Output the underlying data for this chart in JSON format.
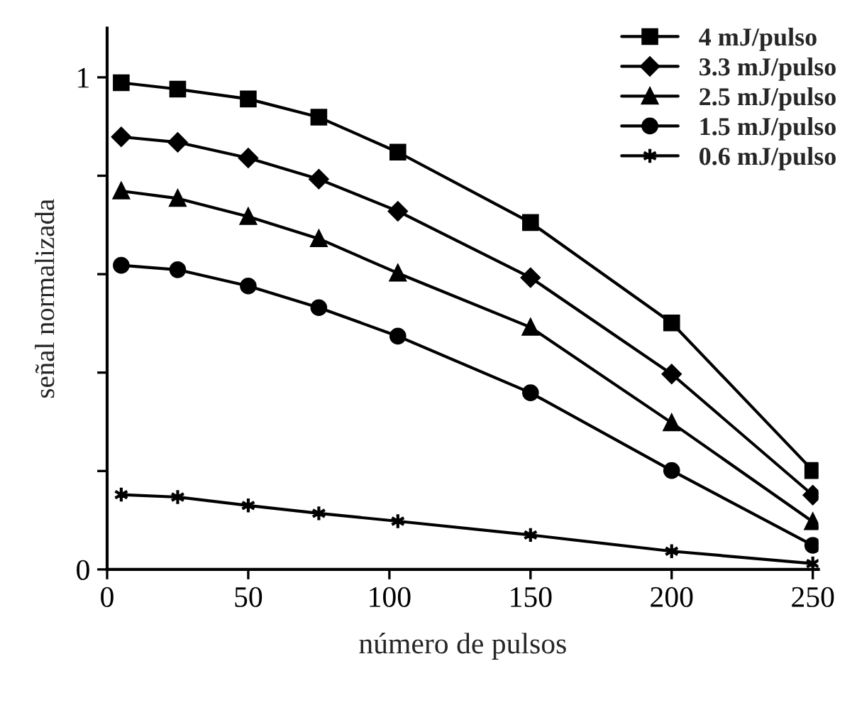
{
  "chart_data": {
    "type": "line",
    "xlabel": "número de pulsos",
    "ylabel": "señal normalizada",
    "x": [
      5,
      25,
      50,
      75,
      103,
      150,
      200,
      250
    ],
    "series": [
      {
        "name": "4 mJ/pulso",
        "color": "#000000",
        "marker": "square",
        "values": [
          0.989,
          0.976,
          0.956,
          0.919,
          0.848,
          0.705,
          0.501,
          0.201
        ]
      },
      {
        "name": "3.3 mJ/pulso",
        "color": "#000000",
        "marker": "diamond",
        "values": [
          0.879,
          0.868,
          0.836,
          0.793,
          0.728,
          0.593,
          0.397,
          0.151
        ]
      },
      {
        "name": "2.5 mJ/pulso",
        "color": "#000000",
        "marker": "triangle",
        "values": [
          0.769,
          0.754,
          0.717,
          0.672,
          0.602,
          0.492,
          0.298,
          0.097
        ]
      },
      {
        "name": "1.5 mJ/pulso",
        "color": "#000000",
        "marker": "circle",
        "values": [
          0.618,
          0.609,
          0.576,
          0.532,
          0.474,
          0.359,
          0.201,
          0.049
        ]
      },
      {
        "name": "0.6 mJ/pulso",
        "color": "#000000",
        "marker": "cross",
        "values": [
          0.152,
          0.147,
          0.13,
          0.114,
          0.098,
          0.07,
          0.037,
          0.012
        ]
      }
    ],
    "xlim": [
      0,
      252
    ],
    "xticks": [
      0,
      50,
      100,
      150,
      200,
      250
    ],
    "ylim": [
      0,
      1.1
    ],
    "yticks": [
      0,
      {
        "value": 0.2,
        "label": null
      },
      {
        "value": 0.4,
        "label": null
      },
      {
        "value": 0.6,
        "label": null
      },
      {
        "value": 0.8,
        "label": null
      },
      1
    ],
    "grid": false,
    "legend": "top right",
    "line_style": "solid"
  }
}
